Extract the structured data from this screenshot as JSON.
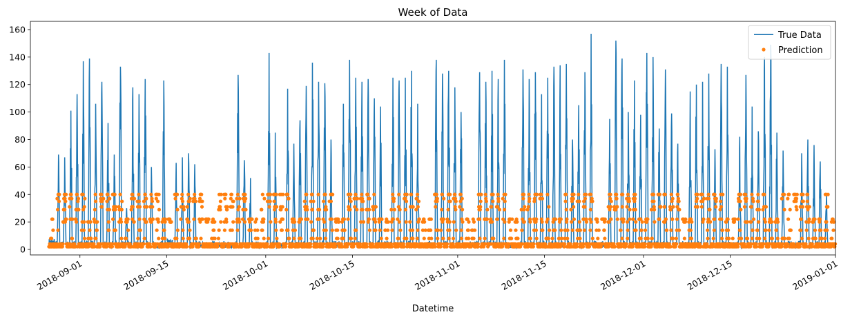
{
  "chart_data": {
    "type": "line",
    "title": "Week of Data",
    "xlabel": "Datetime",
    "ylabel": "",
    "x_range": [
      "2018-08-24",
      "2019-01-01"
    ],
    "ylim": [
      -4,
      166
    ],
    "x_ticks": [
      "2018-09-01",
      "2018-09-15",
      "2018-10-01",
      "2018-10-15",
      "2018-11-01",
      "2018-11-15",
      "2018-12-01",
      "2018-12-15",
      "2019-01-01"
    ],
    "y_ticks": [
      0,
      20,
      40,
      60,
      80,
      100,
      120,
      140,
      160
    ],
    "grid": false,
    "legend_position": "top-right",
    "series": [
      {
        "name": "True Data",
        "style": "line",
        "color": "#1f77b4",
        "data_span": [
          "2018-08-27",
          "2018-12-31"
        ],
        "daily_peaks": [
          [
            "2018-08-27",
            8
          ],
          [
            "2018-08-28",
            69
          ],
          [
            "2018-08-29",
            67
          ],
          [
            "2018-08-30",
            101
          ],
          [
            "2018-08-31",
            113
          ],
          [
            "2018-09-01",
            137
          ],
          [
            "2018-09-02",
            139
          ],
          [
            "2018-09-03",
            106
          ],
          [
            "2018-09-04",
            122
          ],
          [
            "2018-09-05",
            92
          ],
          [
            "2018-09-06",
            69
          ],
          [
            "2018-09-07",
            133
          ],
          [
            "2018-09-08",
            30
          ],
          [
            "2018-09-09",
            118
          ],
          [
            "2018-09-10",
            113
          ],
          [
            "2018-09-11",
            124
          ],
          [
            "2018-09-12",
            60
          ],
          [
            "2018-09-13",
            4
          ],
          [
            "2018-09-14",
            123
          ],
          [
            "2018-09-15",
            8
          ],
          [
            "2018-09-16",
            63
          ],
          [
            "2018-09-17",
            67
          ],
          [
            "2018-09-18",
            70
          ],
          [
            "2018-09-19",
            62
          ],
          [
            "2018-09-20",
            6
          ],
          [
            "2018-09-21",
            5
          ],
          [
            "2018-09-22",
            6
          ],
          [
            "2018-09-23",
            5
          ],
          [
            "2018-09-24",
            6
          ],
          [
            "2018-09-25",
            5
          ],
          [
            "2018-09-26",
            127
          ],
          [
            "2018-09-27",
            65
          ],
          [
            "2018-09-28",
            52
          ],
          [
            "2018-09-29",
            6
          ],
          [
            "2018-09-30",
            5
          ],
          [
            "2018-10-01",
            143
          ],
          [
            "2018-10-02",
            85
          ],
          [
            "2018-10-03",
            5
          ],
          [
            "2018-10-04",
            117
          ],
          [
            "2018-10-05",
            77
          ],
          [
            "2018-10-06",
            94
          ],
          [
            "2018-10-07",
            119
          ],
          [
            "2018-10-08",
            136
          ],
          [
            "2018-10-09",
            122
          ],
          [
            "2018-10-10",
            121
          ],
          [
            "2018-10-11",
            80
          ],
          [
            "2018-10-12",
            6
          ],
          [
            "2018-10-13",
            106
          ],
          [
            "2018-10-14",
            138
          ],
          [
            "2018-10-15",
            125
          ],
          [
            "2018-10-16",
            122
          ],
          [
            "2018-10-17",
            124
          ],
          [
            "2018-10-18",
            110
          ],
          [
            "2018-10-19",
            104
          ],
          [
            "2018-10-20",
            6
          ],
          [
            "2018-10-21",
            125
          ],
          [
            "2018-10-22",
            123
          ],
          [
            "2018-10-23",
            125
          ],
          [
            "2018-10-24",
            130
          ],
          [
            "2018-10-25",
            106
          ],
          [
            "2018-10-26",
            5
          ],
          [
            "2018-10-27",
            6
          ],
          [
            "2018-10-28",
            138
          ],
          [
            "2018-10-29",
            128
          ],
          [
            "2018-10-30",
            130
          ],
          [
            "2018-10-31",
            118
          ],
          [
            "2018-11-01",
            100
          ],
          [
            "2018-11-02",
            5
          ],
          [
            "2018-11-03",
            6
          ],
          [
            "2018-11-04",
            129
          ],
          [
            "2018-11-05",
            122
          ],
          [
            "2018-11-06",
            130
          ],
          [
            "2018-11-07",
            124
          ],
          [
            "2018-11-08",
            138
          ],
          [
            "2018-11-09",
            5
          ],
          [
            "2018-11-10",
            6
          ],
          [
            "2018-11-11",
            131
          ],
          [
            "2018-11-12",
            124
          ],
          [
            "2018-11-13",
            129
          ],
          [
            "2018-11-14",
            113
          ],
          [
            "2018-11-15",
            125
          ],
          [
            "2018-11-16",
            133
          ],
          [
            "2018-11-17",
            134
          ],
          [
            "2018-11-18",
            135
          ],
          [
            "2018-11-19",
            80
          ],
          [
            "2018-11-20",
            105
          ],
          [
            "2018-11-21",
            129
          ],
          [
            "2018-11-22",
            157
          ],
          [
            "2018-11-23",
            6
          ],
          [
            "2018-11-24",
            6
          ],
          [
            "2018-11-25",
            95
          ],
          [
            "2018-11-26",
            152
          ],
          [
            "2018-11-27",
            139
          ],
          [
            "2018-11-28",
            100
          ],
          [
            "2018-11-29",
            123
          ],
          [
            "2018-11-30",
            98
          ],
          [
            "2018-12-01",
            143
          ],
          [
            "2018-12-02",
            140
          ],
          [
            "2018-12-03",
            88
          ],
          [
            "2018-12-04",
            131
          ],
          [
            "2018-12-05",
            99
          ],
          [
            "2018-12-06",
            77
          ],
          [
            "2018-12-07",
            6
          ],
          [
            "2018-12-08",
            115
          ],
          [
            "2018-12-09",
            120
          ],
          [
            "2018-12-10",
            122
          ],
          [
            "2018-12-11",
            128
          ],
          [
            "2018-12-12",
            73
          ],
          [
            "2018-12-13",
            135
          ],
          [
            "2018-12-14",
            133
          ],
          [
            "2018-12-15",
            5
          ],
          [
            "2018-12-16",
            82
          ],
          [
            "2018-12-17",
            127
          ],
          [
            "2018-12-18",
            104
          ],
          [
            "2018-12-19",
            86
          ],
          [
            "2018-12-20",
            140
          ],
          [
            "2018-12-21",
            149
          ],
          [
            "2018-12-22",
            85
          ],
          [
            "2018-12-23",
            72
          ],
          [
            "2018-12-24",
            6
          ],
          [
            "2018-12-25",
            5
          ],
          [
            "2018-12-26",
            70
          ],
          [
            "2018-12-27",
            80
          ],
          [
            "2018-12-28",
            76
          ],
          [
            "2018-12-29",
            64
          ],
          [
            "2018-12-30",
            40
          ],
          [
            "2018-12-31",
            5
          ]
        ]
      },
      {
        "name": "Prediction",
        "style": "points",
        "color": "#ff7f0e",
        "data_span": [
          "2018-08-27",
          "2018-12-31"
        ],
        "value_levels": [
          2,
          4,
          8,
          14,
          20,
          22,
          29,
          31,
          35,
          37,
          40
        ],
        "daily_max": [
          [
            "2018-08-27",
            28
          ],
          [
            "2018-08-28",
            40
          ],
          [
            "2018-08-29",
            40
          ],
          [
            "2018-08-30",
            40
          ],
          [
            "2018-08-31",
            40
          ],
          [
            "2018-09-01",
            40
          ],
          [
            "2018-09-02",
            20
          ],
          [
            "2018-09-03",
            40
          ],
          [
            "2018-09-04",
            40
          ],
          [
            "2018-09-05",
            40
          ],
          [
            "2018-09-06",
            40
          ],
          [
            "2018-09-07",
            40
          ],
          [
            "2018-09-08",
            23
          ],
          [
            "2018-09-09",
            40
          ],
          [
            "2018-09-10",
            40
          ],
          [
            "2018-09-11",
            40
          ],
          [
            "2018-09-12",
            40
          ],
          [
            "2018-09-13",
            40
          ],
          [
            "2018-09-14",
            24
          ],
          [
            "2018-09-15",
            23
          ],
          [
            "2018-09-16",
            40
          ],
          [
            "2018-09-17",
            40
          ],
          [
            "2018-09-18",
            40
          ],
          [
            "2018-09-19",
            40
          ],
          [
            "2018-09-20",
            40
          ],
          [
            "2018-09-21",
            24
          ],
          [
            "2018-09-22",
            23
          ],
          [
            "2018-09-23",
            40
          ],
          [
            "2018-09-24",
            40
          ],
          [
            "2018-09-25",
            40
          ],
          [
            "2018-09-26",
            40
          ],
          [
            "2018-09-27",
            40
          ],
          [
            "2018-09-28",
            24
          ],
          [
            "2018-09-29",
            23
          ],
          [
            "2018-09-30",
            40
          ],
          [
            "2018-10-01",
            40
          ],
          [
            "2018-10-02",
            40
          ],
          [
            "2018-10-03",
            40
          ],
          [
            "2018-10-04",
            40
          ],
          [
            "2018-10-05",
            24
          ],
          [
            "2018-10-06",
            23
          ],
          [
            "2018-10-07",
            40
          ],
          [
            "2018-10-08",
            40
          ],
          [
            "2018-10-09",
            40
          ],
          [
            "2018-10-10",
            40
          ],
          [
            "2018-10-11",
            40
          ],
          [
            "2018-10-12",
            24
          ],
          [
            "2018-10-13",
            23
          ],
          [
            "2018-10-14",
            40
          ],
          [
            "2018-10-15",
            40
          ],
          [
            "2018-10-16",
            40
          ],
          [
            "2018-10-17",
            40
          ],
          [
            "2018-10-18",
            40
          ],
          [
            "2018-10-19",
            24
          ],
          [
            "2018-10-20",
            23
          ],
          [
            "2018-10-21",
            40
          ],
          [
            "2018-10-22",
            40
          ],
          [
            "2018-10-23",
            40
          ],
          [
            "2018-10-24",
            40
          ],
          [
            "2018-10-25",
            40
          ],
          [
            "2018-10-26",
            24
          ],
          [
            "2018-10-27",
            23
          ],
          [
            "2018-10-28",
            40
          ],
          [
            "2018-10-29",
            40
          ],
          [
            "2018-10-30",
            40
          ],
          [
            "2018-10-31",
            40
          ],
          [
            "2018-11-01",
            40
          ],
          [
            "2018-11-02",
            24
          ],
          [
            "2018-11-03",
            23
          ],
          [
            "2018-11-04",
            40
          ],
          [
            "2018-11-05",
            40
          ],
          [
            "2018-11-06",
            40
          ],
          [
            "2018-11-07",
            40
          ],
          [
            "2018-11-08",
            40
          ],
          [
            "2018-11-09",
            24
          ],
          [
            "2018-11-10",
            23
          ],
          [
            "2018-11-11",
            40
          ],
          [
            "2018-11-12",
            40
          ],
          [
            "2018-11-13",
            40
          ],
          [
            "2018-11-14",
            40
          ],
          [
            "2018-11-15",
            40
          ],
          [
            "2018-11-16",
            24
          ],
          [
            "2018-11-17",
            23
          ],
          [
            "2018-11-18",
            40
          ],
          [
            "2018-11-19",
            40
          ],
          [
            "2018-11-20",
            40
          ],
          [
            "2018-11-21",
            40
          ],
          [
            "2018-11-22",
            40
          ],
          [
            "2018-11-23",
            24
          ],
          [
            "2018-11-24",
            23
          ],
          [
            "2018-11-25",
            40
          ],
          [
            "2018-11-26",
            40
          ],
          [
            "2018-11-27",
            40
          ],
          [
            "2018-11-28",
            40
          ],
          [
            "2018-11-29",
            40
          ],
          [
            "2018-11-30",
            24
          ],
          [
            "2018-12-01",
            23
          ],
          [
            "2018-12-02",
            40
          ],
          [
            "2018-12-03",
            40
          ],
          [
            "2018-12-04",
            40
          ],
          [
            "2018-12-05",
            40
          ],
          [
            "2018-12-06",
            40
          ],
          [
            "2018-12-07",
            24
          ],
          [
            "2018-12-08",
            23
          ],
          [
            "2018-12-09",
            40
          ],
          [
            "2018-12-10",
            40
          ],
          [
            "2018-12-11",
            40
          ],
          [
            "2018-12-12",
            40
          ],
          [
            "2018-12-13",
            40
          ],
          [
            "2018-12-14",
            24
          ],
          [
            "2018-12-15",
            23
          ],
          [
            "2018-12-16",
            40
          ],
          [
            "2018-12-17",
            40
          ],
          [
            "2018-12-18",
            40
          ],
          [
            "2018-12-19",
            40
          ],
          [
            "2018-12-20",
            40
          ],
          [
            "2018-12-21",
            24
          ],
          [
            "2018-12-22",
            23
          ],
          [
            "2018-12-23",
            40
          ],
          [
            "2018-12-24",
            40
          ],
          [
            "2018-12-25",
            40
          ],
          [
            "2018-12-26",
            40
          ],
          [
            "2018-12-27",
            40
          ],
          [
            "2018-12-28",
            24
          ],
          [
            "2018-12-29",
            23
          ],
          [
            "2018-12-30",
            40
          ],
          [
            "2018-12-31",
            23
          ]
        ]
      }
    ]
  }
}
